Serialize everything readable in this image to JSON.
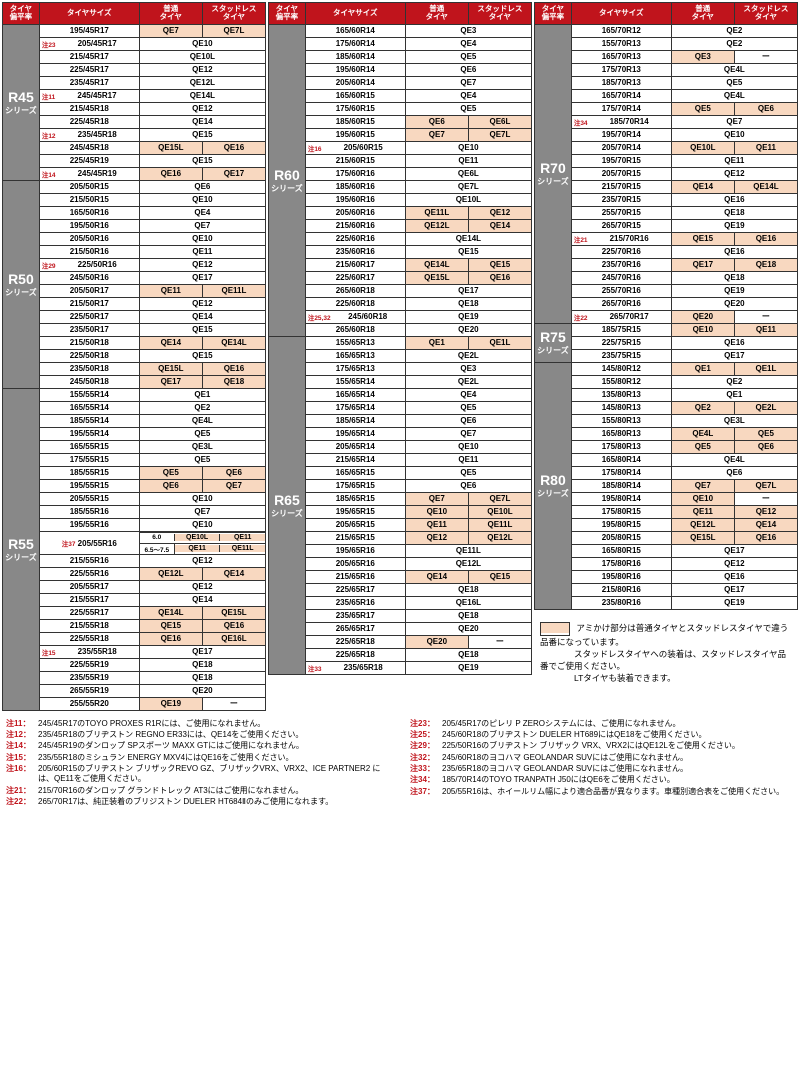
{
  "headers": {
    "aspect": "タイヤ\n偏平率",
    "size": "タイヤサイズ",
    "normal": "普通\nタイヤ",
    "studless": "スタッドレス\nタイヤ"
  },
  "series_suffix": "シリーズ",
  "columns": [
    {
      "series_blocks": [
        {
          "name": "R45",
          "rows": [
            {
              "size": "195/45R17",
              "c1": "QE7",
              "c2": "QE7L",
              "hl": true
            },
            {
              "note": "注23",
              "size": "205/45R17",
              "c": "QE10"
            },
            {
              "size": "215/45R17",
              "c": "QE10L"
            },
            {
              "size": "225/45R17",
              "c": "QE12"
            },
            {
              "size": "235/45R17",
              "c": "QE12L"
            },
            {
              "note": "注11",
              "size": "245/45R17",
              "c": "QE14L"
            },
            {
              "size": "215/45R18",
              "c": "QE12"
            },
            {
              "size": "225/45R18",
              "c": "QE14"
            },
            {
              "note": "注12",
              "size": "235/45R18",
              "c": "QE15"
            },
            {
              "size": "245/45R18",
              "c1": "QE15L",
              "c2": "QE16",
              "hl": true
            },
            {
              "size": "225/45R19",
              "c": "QE15"
            },
            {
              "note": "注14",
              "size": "245/45R19",
              "c1": "QE16",
              "c2": "QE17",
              "hl": true
            }
          ]
        },
        {
          "name": "R50",
          "rows": [
            {
              "size": "205/50R15",
              "c": "QE6"
            },
            {
              "size": "215/50R15",
              "c": "QE10"
            },
            {
              "size": "165/50R16",
              "c": "QE4"
            },
            {
              "size": "195/50R16",
              "c": "QE7"
            },
            {
              "size": "205/50R16",
              "c": "QE10"
            },
            {
              "size": "215/50R16",
              "c": "QE11"
            },
            {
              "note": "注29",
              "size": "225/50R16",
              "c": "QE12"
            },
            {
              "size": "245/50R16",
              "c": "QE17"
            },
            {
              "size": "205/50R17",
              "c1": "QE11",
              "c2": "QE11L",
              "hl": true
            },
            {
              "size": "215/50R17",
              "c": "QE12"
            },
            {
              "size": "225/50R17",
              "c": "QE14"
            },
            {
              "size": "235/50R17",
              "c": "QE15"
            },
            {
              "size": "215/50R18",
              "c1": "QE14",
              "c2": "QE14L",
              "hl": true
            },
            {
              "size": "225/50R18",
              "c": "QE15"
            },
            {
              "size": "235/50R18",
              "c1": "QE15L",
              "c2": "QE16",
              "hl": true
            },
            {
              "size": "245/50R18",
              "c1": "QE17",
              "c2": "QE18",
              "hl": true
            }
          ]
        },
        {
          "name": "R55",
          "rows": [
            {
              "size": "155/55R14",
              "c": "QE1"
            },
            {
              "size": "165/55R14",
              "c": "QE2"
            },
            {
              "size": "185/55R14",
              "c": "QE4L"
            },
            {
              "size": "195/55R14",
              "c": "QE5"
            },
            {
              "size": "165/55R15",
              "c": "QE3L"
            },
            {
              "size": "175/55R15",
              "c": "QE5"
            },
            {
              "size": "185/55R15",
              "c1": "QE5",
              "c2": "QE6",
              "hl": true
            },
            {
              "size": "195/55R15",
              "c1": "QE6",
              "c2": "QE7",
              "hl": true
            },
            {
              "size": "205/55R15",
              "c": "QE10"
            },
            {
              "size": "185/55R16",
              "c": "QE7"
            },
            {
              "size": "195/55R16",
              "c": "QE10"
            },
            {
              "note": "注37",
              "size": "205/55R16",
              "rim": true
            },
            {
              "rim_val": "6.0",
              "c1": "QE10L",
              "c2": "QE11",
              "hl": true,
              "rim_sub": true
            },
            {
              "rim_val": "6.5〜7.5",
              "c1": "QE11",
              "c2": "QE11L",
              "hl": true,
              "rim_sub": true
            },
            {
              "size": "215/55R16",
              "c": "QE12"
            },
            {
              "size": "225/55R16",
              "c1": "QE12L",
              "c2": "QE14",
              "hl": true
            },
            {
              "size": "205/55R17",
              "c": "QE12"
            },
            {
              "size": "215/55R17",
              "c": "QE14"
            },
            {
              "size": "225/55R17",
              "c1": "QE14L",
              "c2": "QE15L",
              "hl": true
            },
            {
              "size": "215/55R18",
              "c1": "QE15",
              "c2": "QE16",
              "hl": true
            },
            {
              "size": "225/55R18",
              "c1": "QE16",
              "c2": "QE16L",
              "hl": true
            },
            {
              "note": "注15",
              "size": "235/55R18",
              "c": "QE17"
            },
            {
              "size": "225/55R19",
              "c": "QE18"
            },
            {
              "size": "235/55R19",
              "c": "QE18"
            },
            {
              "size": "265/55R19",
              "c": "QE20"
            },
            {
              "size": "255/55R20",
              "c1": "QE19",
              "c2": "ー",
              "hl1": true
            }
          ]
        }
      ]
    },
    {
      "series_blocks": [
        {
          "name": "R60",
          "rows": [
            {
              "size": "165/60R14",
              "c": "QE3"
            },
            {
              "size": "175/60R14",
              "c": "QE4"
            },
            {
              "size": "185/60R14",
              "c": "QE5"
            },
            {
              "size": "195/60R14",
              "c": "QE6"
            },
            {
              "size": "205/60R14",
              "c": "QE7"
            },
            {
              "size": "165/60R15",
              "c": "QE4"
            },
            {
              "size": "175/60R15",
              "c": "QE5"
            },
            {
              "size": "185/60R15",
              "c1": "QE6",
              "c2": "QE6L",
              "hl": true
            },
            {
              "size": "195/60R15",
              "c1": "QE7",
              "c2": "QE7L",
              "hl": true
            },
            {
              "note": "注16",
              "size": "205/60R15",
              "c": "QE10"
            },
            {
              "size": "215/60R15",
              "c": "QE11"
            },
            {
              "size": "175/60R16",
              "c": "QE6L"
            },
            {
              "size": "185/60R16",
              "c": "QE7L"
            },
            {
              "size": "195/60R16",
              "c": "QE10L"
            },
            {
              "size": "205/60R16",
              "c1": "QE11L",
              "c2": "QE12",
              "hl": true
            },
            {
              "size": "215/60R16",
              "c1": "QE12L",
              "c2": "QE14",
              "hl": true
            },
            {
              "size": "225/60R16",
              "c": "QE14L"
            },
            {
              "size": "235/60R16",
              "c": "QE15"
            },
            {
              "size": "215/60R17",
              "c1": "QE14L",
              "c2": "QE15",
              "hl": true
            },
            {
              "size": "225/60R17",
              "c1": "QE15L",
              "c2": "QE16",
              "hl": true
            },
            {
              "size": "265/60R18",
              "c": "QE17"
            },
            {
              "size": "225/60R18",
              "c": "QE18"
            },
            {
              "note": "注25,32",
              "size": "245/60R18",
              "c": "QE19"
            },
            {
              "size": "265/60R18",
              "c": "QE20"
            }
          ]
        },
        {
          "name": "R65",
          "rows": [
            {
              "size": "155/65R13",
              "c1": "QE1",
              "c2": "QE1L",
              "hl": true
            },
            {
              "size": "165/65R13",
              "c": "QE2L"
            },
            {
              "size": "175/65R13",
              "c": "QE3"
            },
            {
              "size": "155/65R14",
              "c": "QE2L"
            },
            {
              "size": "165/65R14",
              "c": "QE4"
            },
            {
              "size": "175/65R14",
              "c": "QE5"
            },
            {
              "size": "185/65R14",
              "c": "QE6"
            },
            {
              "size": "195/65R14",
              "c": "QE7"
            },
            {
              "size": "205/65R14",
              "c": "QE10"
            },
            {
              "size": "215/65R14",
              "c": "QE11"
            },
            {
              "size": "165/65R15",
              "c": "QE5"
            },
            {
              "size": "175/65R15",
              "c": "QE6"
            },
            {
              "size": "185/65R15",
              "c1": "QE7",
              "c2": "QE7L",
              "hl": true
            },
            {
              "size": "195/65R15",
              "c1": "QE10",
              "c2": "QE10L",
              "hl": true
            },
            {
              "size": "205/65R15",
              "c1": "QE11",
              "c2": "QE11L",
              "hl": true
            },
            {
              "size": "215/65R15",
              "c1": "QE12",
              "c2": "QE12L",
              "hl": true
            },
            {
              "size": "195/65R16",
              "c": "QE11L"
            },
            {
              "size": "205/65R16",
              "c": "QE12L"
            },
            {
              "size": "215/65R16",
              "c1": "QE14",
              "c2": "QE15",
              "hl": true
            },
            {
              "size": "225/65R17",
              "c": "QE18"
            },
            {
              "size": "235/65R16",
              "c": "QE16L"
            },
            {
              "size": "235/65R17",
              "c": "QE18"
            },
            {
              "size": "265/65R17",
              "c": "QE20"
            },
            {
              "size": "225/65R18",
              "c1": "QE20",
              "c2": "ー",
              "hl1": true
            },
            {
              "size": "225/65R18",
              "c": "QE18"
            },
            {
              "note": "注33",
              "size": "235/65R18",
              "c": "QE19"
            }
          ]
        }
      ]
    },
    {
      "series_blocks": [
        {
          "name": "R70",
          "rows": [
            {
              "size": "165/70R12",
              "c": "QE2"
            },
            {
              "size": "155/70R13",
              "c": "QE2"
            },
            {
              "size": "165/70R13",
              "c1": "QE3",
              "c2": "ー",
              "hl1": true
            },
            {
              "size": "175/70R13",
              "c": "QE4L"
            },
            {
              "size": "185/70R13",
              "c": "QE5"
            },
            {
              "size": "165/70R14",
              "c": "QE4L"
            },
            {
              "size": "175/70R14",
              "c1": "QE5",
              "c2": "QE6",
              "hl": true
            },
            {
              "note": "注34",
              "size": "185/70R14",
              "c": "QE7"
            },
            {
              "size": "195/70R14",
              "c": "QE10"
            },
            {
              "size": "205/70R14",
              "c1": "QE10L",
              "c2": "QE11",
              "hl": true
            },
            {
              "size": "195/70R15",
              "c": "QE11"
            },
            {
              "size": "205/70R15",
              "c": "QE12"
            },
            {
              "size": "215/70R15",
              "c1": "QE14",
              "c2": "QE14L",
              "hl": true
            },
            {
              "size": "235/70R15",
              "c": "QE16"
            },
            {
              "size": "255/70R15",
              "c": "QE18"
            },
            {
              "size": "265/70R15",
              "c": "QE19"
            },
            {
              "note": "注21",
              "size": "215/70R16",
              "c1": "QE15",
              "c2": "QE16",
              "hl": true
            },
            {
              "size": "225/70R16",
              "c": "QE16"
            },
            {
              "size": "235/70R16",
              "c1": "QE17",
              "c2": "QE18",
              "hl": true
            },
            {
              "size": "245/70R16",
              "c": "QE18"
            },
            {
              "size": "255/70R16",
              "c": "QE19"
            },
            {
              "size": "265/70R16",
              "c": "QE20"
            },
            {
              "note": "注22",
              "size": "265/70R17",
              "c1": "QE20",
              "c2": "ー",
              "hl1": true
            }
          ]
        },
        {
          "name": "R75",
          "rows": [
            {
              "size": "185/75R15",
              "c1": "QE10",
              "c2": "QE11",
              "hl": true
            },
            {
              "size": "225/75R15",
              "c": "QE16"
            },
            {
              "size": "235/75R15",
              "c": "QE17"
            }
          ]
        },
        {
          "name": "R80",
          "rows": [
            {
              "size": "145/80R12",
              "c1": "QE1",
              "c2": "QE1L",
              "hl": true
            },
            {
              "size": "155/80R12",
              "c": "QE2"
            },
            {
              "size": "135/80R13",
              "c": "QE1"
            },
            {
              "size": "145/80R13",
              "c1": "QE2",
              "c2": "QE2L",
              "hl": true
            },
            {
              "size": "155/80R13",
              "c": "QE3L"
            },
            {
              "size": "165/80R13",
              "c1": "QE4L",
              "c2": "QE5",
              "hl": true
            },
            {
              "size": "175/80R13",
              "c1": "QE5",
              "c2": "QE6",
              "hl": true
            },
            {
              "size": "165/80R14",
              "c": "QE4L"
            },
            {
              "size": "175/80R14",
              "c": "QE6"
            },
            {
              "size": "185/80R14",
              "c1": "QE7",
              "c2": "QE7L",
              "hl": true
            },
            {
              "size": "195/80R14",
              "c1": "QE10",
              "c2": "ー",
              "hl1": true
            },
            {
              "size": "175/80R15",
              "c1": "QE11",
              "c2": "QE12",
              "hl": true
            },
            {
              "size": "195/80R15",
              "c1": "QE12L",
              "c2": "QE14",
              "hl": true
            },
            {
              "size": "205/80R15",
              "c1": "QE15L",
              "c2": "QE16",
              "hl": true
            },
            {
              "size": "165/80R15",
              "c": "QE17"
            },
            {
              "size": "175/80R16",
              "c": "QE12"
            },
            {
              "size": "195/80R16",
              "c": "QE16"
            },
            {
              "size": "215/80R16",
              "c": "QE17"
            },
            {
              "size": "235/80R16",
              "c": "QE19"
            }
          ]
        }
      ]
    }
  ],
  "rim_label": "リム\n幅",
  "footer_note": {
    "line1": "アミかけ部分は普通タイヤとスタッドレスタイヤで違う品番になっています。",
    "line2": "スタッドレスタイヤへの装着は、スタッドレスタイヤ品番でご使用ください。",
    "line3": "LTタイヤも装着できます。"
  },
  "footnotes_left": [
    {
      "label": "注11：",
      "text": "245/45R17のTOYO PROXES R1Rには、ご使用になれません。"
    },
    {
      "label": "注12：",
      "text": "235/45R18のブリヂストン REGNO ER33には、QE14をご使用ください。"
    },
    {
      "label": "注14：",
      "text": "245/45R19のダンロップ SPスポーツ MAXX GTにはご使用になれません。"
    },
    {
      "label": "注15：",
      "text": "235/55R18のミシュラン ENERGY MXV4にはQE16をご使用ください。"
    },
    {
      "label": "注16：",
      "text": "205/60R15のブリヂストン ブリザックREVO GZ、ブリザックVRX、VRX2、ICE PARTNER2 には、QE11をご使用ください。"
    },
    {
      "label": "注21：",
      "text": "215/70R16のダンロップ グランドトレック AT3にはご使用になれません。"
    },
    {
      "label": "注22：",
      "text": "265/70R17は、純正装着のブリジストン DUELER HT684Ⅱのみご使用になれます。"
    }
  ],
  "footnotes_right": [
    {
      "label": "注23：",
      "text": "205/45R17のピレリ P ZEROシステムには、ご使用になれません。"
    },
    {
      "label": "注25：",
      "text": "245/60R18のブリヂストン DUELER HT689にはQE18をご使用ください。"
    },
    {
      "label": "注29：",
      "text": "225/50R16のブリヂストン ブリザック VRX、VRX2にはQE12Lをご使用ください。"
    },
    {
      "label": "注32：",
      "text": "245/60R18のヨコハマ GEOLANDAR SUVにはご使用になれません。"
    },
    {
      "label": "注33：",
      "text": "235/65R18のヨコハマ GEOLANDAR SUVにはご使用になれません。"
    },
    {
      "label": "注34：",
      "text": "185/70R14のTOYO TRANPATH J50にはQE6をご使用ください。"
    },
    {
      "label": "注37：",
      "text": "205/55R16は、ホイールリム幅により適合品番が異なります。車種別適合表をご使用ください。"
    }
  ]
}
